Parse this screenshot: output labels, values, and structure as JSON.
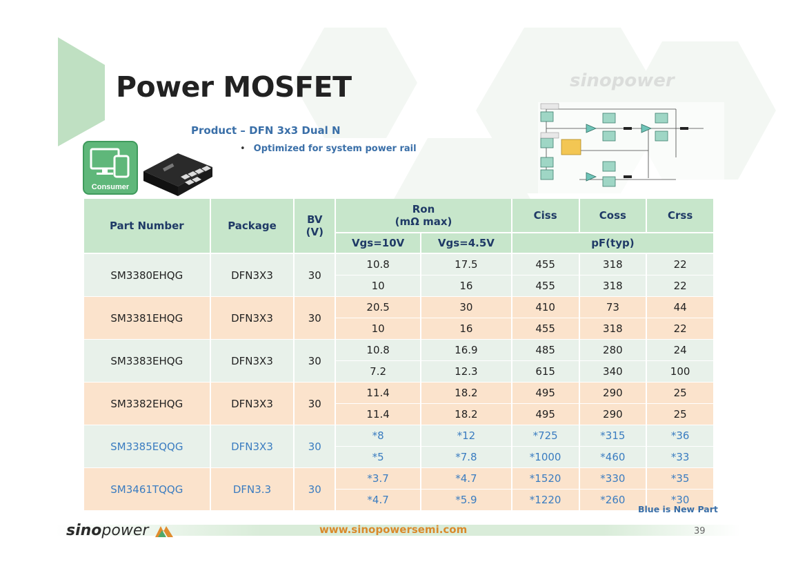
{
  "title": "Power MOSFET",
  "subtitle": "Product – DFN 3x3 Dual N",
  "bullet": "Optimized for system power rail",
  "consumer_label": "Consumer",
  "watermark": "sinopower",
  "table": {
    "headers": {
      "part_number": "Part Number",
      "package": "Package",
      "bv_line1": "BV",
      "bv_line2": "(V)",
      "ron_line1": "Ron",
      "ron_line2": "(mΩ max)",
      "ciss": "Ciss",
      "coss": "Coss",
      "crss": "Crss",
      "vgs10": "Vgs=10V",
      "vgs45": "Vgs=4.5V",
      "pf": "pF(typ)"
    },
    "parts": [
      {
        "part": "SM3380EHQG",
        "pkg": "DFN3X3",
        "bv": "30",
        "rows": [
          [
            "10.8",
            "17.5",
            "455",
            "318",
            "22"
          ],
          [
            "10",
            "16",
            "455",
            "318",
            "22"
          ]
        ]
      },
      {
        "part": "SM3381EHQG",
        "pkg": "DFN3X3",
        "bv": "30",
        "rows": [
          [
            "20.5",
            "30",
            "410",
            "73",
            "44"
          ],
          [
            "10",
            "16",
            "455",
            "318",
            "22"
          ]
        ]
      },
      {
        "part": "SM3383EHQG",
        "pkg": "DFN3X3",
        "bv": "30",
        "rows": [
          [
            "10.8",
            "16.9",
            "485",
            "280",
            "24"
          ],
          [
            "7.2",
            "12.3",
            "615",
            "340",
            "100"
          ]
        ]
      },
      {
        "part": "SM3382EHQG",
        "pkg": "DFN3X3",
        "bv": "30",
        "rows": [
          [
            "11.4",
            "18.2",
            "495",
            "290",
            "25"
          ],
          [
            "11.4",
            "18.2",
            "495",
            "290",
            "25"
          ]
        ]
      },
      {
        "part": "SM3385EQQG",
        "pkg": "DFN3X3",
        "bv": "30",
        "rows": [
          [
            "*8",
            "*12",
            "*725",
            "*315",
            "*36"
          ],
          [
            "*5",
            "*7.8",
            "*1000",
            "*460",
            "*33"
          ]
        ]
      },
      {
        "part": "SM3461TQQG",
        "pkg": "DFN3.3",
        "bv": "30",
        "rows": [
          [
            "*3.7",
            "*4.7",
            "*1520",
            "*330",
            "*35"
          ],
          [
            "*4.7",
            "*5.9",
            "*1220",
            "*260",
            "*30"
          ]
        ]
      }
    ]
  },
  "note": "Blue is New Part",
  "footer": {
    "logo_sino": "sino",
    "logo_power": "power",
    "website": "www.sinopowersemi.com",
    "page": "39"
  },
  "colors": {
    "header_bg": "#c7e6cb",
    "row_green": "#e8f1ea",
    "row_orange": "#fbe3cc",
    "new_part_blue": "#3a7cc0",
    "accent_orange": "#d98a2b"
  }
}
